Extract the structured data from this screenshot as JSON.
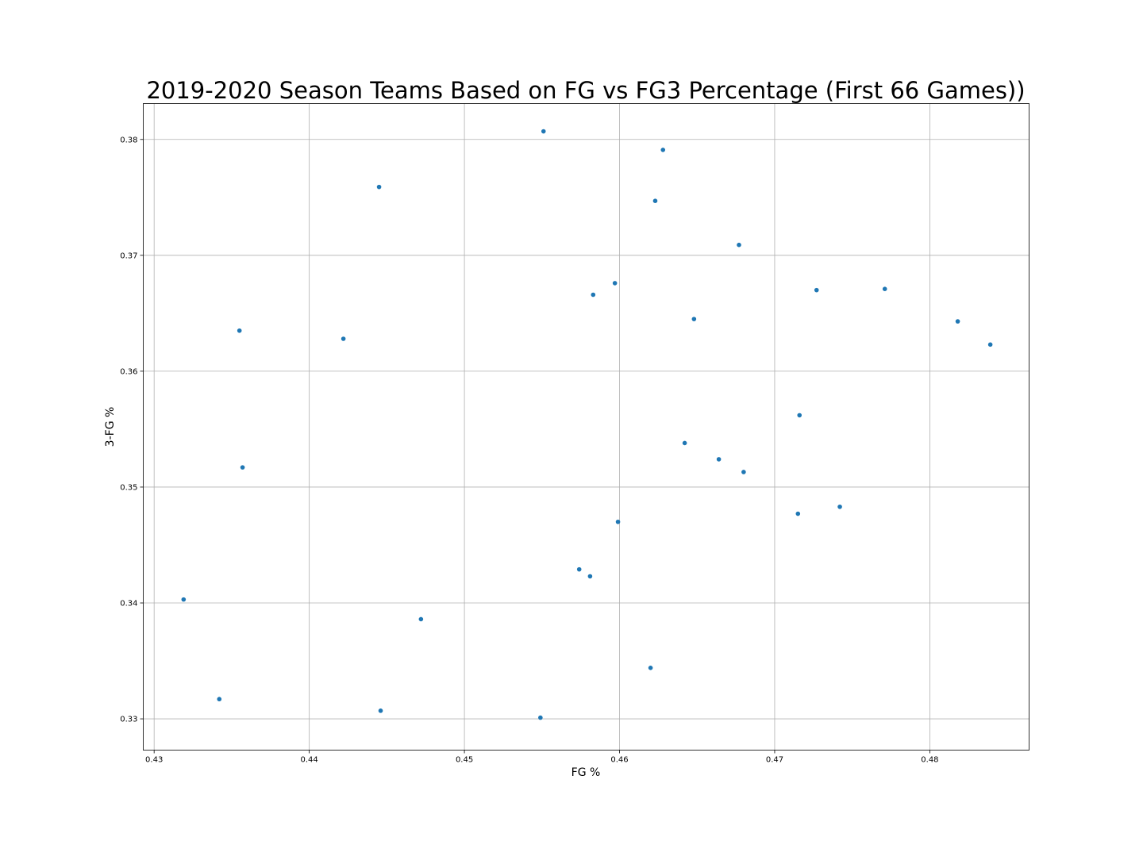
{
  "chart_data": {
    "type": "scatter",
    "title": "2019-2020 Season Teams Based on FG vs FG3 Percentage (First 66 Games))",
    "xlabel": "FG %",
    "ylabel": "3-FG %",
    "xlim": [
      0.4293,
      0.4864
    ],
    "ylim": [
      0.3273,
      0.3831
    ],
    "x_ticks": [
      0.43,
      0.44,
      0.45,
      0.46,
      0.47,
      0.48
    ],
    "x_tick_labels": [
      "0.43",
      "0.44",
      "0.45",
      "0.46",
      "0.47",
      "0.48"
    ],
    "y_ticks": [
      0.33,
      0.34,
      0.35,
      0.36,
      0.37,
      0.38
    ],
    "y_tick_labels": [
      "0.33",
      "0.34",
      "0.35",
      "0.36",
      "0.37",
      "0.38"
    ],
    "grid": true,
    "marker_color": "#1f77b4",
    "points": [
      {
        "x": 0.4551,
        "y": 0.3807
      },
      {
        "x": 0.4628,
        "y": 0.3791
      },
      {
        "x": 0.4445,
        "y": 0.3759
      },
      {
        "x": 0.4623,
        "y": 0.3747
      },
      {
        "x": 0.4677,
        "y": 0.3709
      },
      {
        "x": 0.4597,
        "y": 0.3676
      },
      {
        "x": 0.4583,
        "y": 0.3666
      },
      {
        "x": 0.4727,
        "y": 0.367
      },
      {
        "x": 0.4771,
        "y": 0.3671
      },
      {
        "x": 0.4648,
        "y": 0.3645
      },
      {
        "x": 0.4818,
        "y": 0.3643
      },
      {
        "x": 0.4355,
        "y": 0.3635
      },
      {
        "x": 0.4422,
        "y": 0.3628
      },
      {
        "x": 0.4839,
        "y": 0.3623
      },
      {
        "x": 0.4716,
        "y": 0.3562
      },
      {
        "x": 0.4642,
        "y": 0.3538
      },
      {
        "x": 0.4664,
        "y": 0.3524
      },
      {
        "x": 0.468,
        "y": 0.3513
      },
      {
        "x": 0.4357,
        "y": 0.3517
      },
      {
        "x": 0.4742,
        "y": 0.3483
      },
      {
        "x": 0.4715,
        "y": 0.3477
      },
      {
        "x": 0.4599,
        "y": 0.347
      },
      {
        "x": 0.4574,
        "y": 0.3429
      },
      {
        "x": 0.4581,
        "y": 0.3423
      },
      {
        "x": 0.4319,
        "y": 0.3403
      },
      {
        "x": 0.4472,
        "y": 0.3386
      },
      {
        "x": 0.462,
        "y": 0.3344
      },
      {
        "x": 0.4342,
        "y": 0.3317
      },
      {
        "x": 0.4446,
        "y": 0.3307
      },
      {
        "x": 0.4549,
        "y": 0.3301
      }
    ]
  }
}
